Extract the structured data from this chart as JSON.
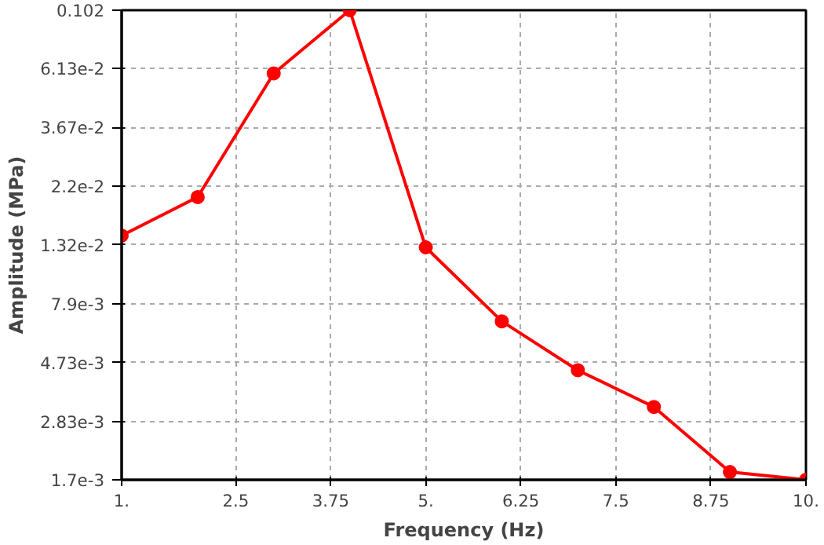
{
  "chart_data": {
    "type": "line",
    "xlabel": "Frequency (Hz)",
    "ylabel": "Amplitude (MPa)",
    "x": [
      1,
      2,
      3,
      4,
      5,
      6,
      7,
      8,
      9,
      10
    ],
    "series": [
      {
        "color": "#ff0000",
        "values": [
          0.0143,
          0.02,
          0.0588,
          0.102,
          0.0129,
          0.00677,
          0.00442,
          0.00321,
          0.00182,
          0.0017
        ]
      }
    ],
    "log": "y",
    "xlim": [
      1,
      10
    ],
    "ylim": [
      0.0017,
      0.102
    ],
    "xticks": [
      {
        "value": 1,
        "label": "1."
      },
      2.5,
      3.75,
      {
        "value": 5,
        "label": "5."
      },
      6.25,
      7.5,
      8.75,
      {
        "value": 10,
        "label": "10."
      }
    ],
    "yticks": [
      {
        "value": 0.0017,
        "label": "1.7e-3"
      },
      {
        "value": 0.00283,
        "label": "2.83e-3"
      },
      {
        "value": 0.00473,
        "label": "4.73e-3"
      },
      {
        "value": 0.0079,
        "label": "7.9e-3"
      },
      {
        "value": 0.0132,
        "label": "1.32e-2"
      },
      {
        "value": 0.022,
        "label": "2.2e-2"
      },
      {
        "value": 0.0367,
        "label": "3.67e-2"
      },
      {
        "value": 0.0613,
        "label": "6.13e-2"
      },
      0.102
    ],
    "grid": true,
    "marker": "circle",
    "line_style": "solid"
  }
}
